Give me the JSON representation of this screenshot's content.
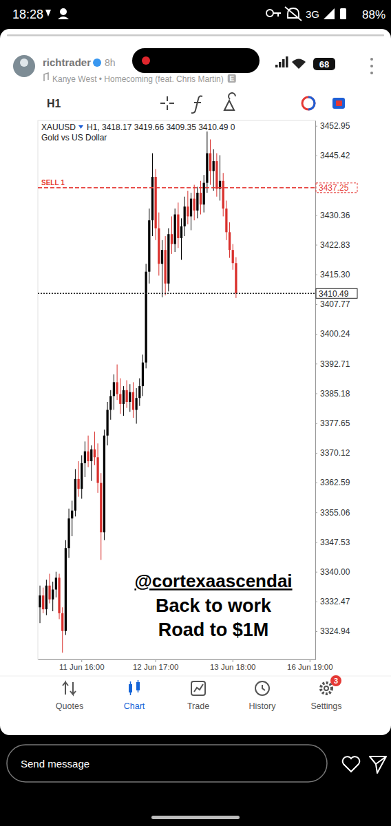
{
  "status_bar": {
    "time": "18:28",
    "network": "3G",
    "battery": "88%"
  },
  "story": {
    "username": "richtrader",
    "age": "8h",
    "song": "Kanye West • Homecoming (feat. Chris Martin)",
    "explicit": "E",
    "reply_placeholder": "Send message",
    "overlay": {
      "mention": "@cortexaascendai",
      "lines": [
        "Back to work",
        "Road to $1M"
      ]
    }
  },
  "inner_status": {
    "battery": "68"
  },
  "app": {
    "timeframe": "H1",
    "nav": [
      "Quotes",
      "Chart",
      "Trade",
      "History",
      "Settings"
    ],
    "active_nav": "Chart",
    "settings_badge": 3
  },
  "chart_data": {
    "type": "candlestick",
    "symbol": "XAUUSD",
    "header": "H1, 3418.17 3419.66 3409.35 3410.49 0",
    "subtitle": "Gold vs US Dollar",
    "categories": [
      null,
      null,
      null,
      null,
      null,
      null,
      null,
      null,
      null,
      null,
      null,
      null,
      null,
      "11 Jun 16:00",
      null,
      null,
      null,
      null,
      null,
      null,
      null,
      null,
      null,
      null,
      null,
      null,
      null,
      null,
      null,
      null,
      null,
      null,
      null,
      null,
      null,
      null,
      "12 Jun 17:00",
      null,
      null,
      null,
      null,
      null,
      null,
      null,
      null,
      null,
      null,
      null,
      null,
      null,
      null,
      null,
      null,
      null,
      null,
      null,
      null,
      null,
      null,
      null,
      "13 Jun 18:00",
      null,
      null,
      null,
      null,
      null,
      null,
      null,
      null,
      null,
      null,
      null,
      null,
      null,
      null,
      null,
      null,
      null,
      null,
      null,
      null,
      null,
      null,
      null,
      "16 Jun 19:00",
      null
    ],
    "open": [
      3331.0,
      3334.0,
      3330.5,
      3336.5,
      3333.0,
      3335.5,
      3338.5,
      3329.5,
      3325.0,
      3346.0,
      3353.5,
      3355.5,
      3363.5,
      3361.0,
      3367.5,
      3370.5,
      3368.0,
      3371.0,
      3369.0,
      3362.5,
      3350.0,
      3374.5,
      3381.0,
      3384.5,
      3388.0,
      3385.0,
      3382.5,
      3386.0,
      3383.0,
      3385.5,
      3381.0,
      3384.0,
      3387.0,
      3393.0,
      3416.0,
      3429.0,
      3440.0,
      3427.0,
      3418.0,
      3421.5,
      3413.0,
      3425.5,
      3423.0,
      3430.5,
      3424.5,
      3427.5,
      3432.5,
      3430.0,
      3434.5,
      3431.5,
      3436.0,
      3433.0,
      3438.5,
      3446.0,
      3441.5,
      3444.0,
      3437.0,
      3439.0,
      3432.0,
      3426.0,
      3421.5,
      3418.17,
      null,
      null,
      null,
      null,
      null,
      null,
      null,
      null,
      null,
      null,
      null,
      null,
      null,
      null,
      null,
      null,
      null,
      null,
      null,
      null,
      null,
      null,
      null,
      null
    ],
    "high": [
      3336.5,
      3336.0,
      3338.0,
      3339.5,
      3337.5,
      3340.0,
      3339.5,
      3331.0,
      3348.0,
      3356.0,
      3358.0,
      3366.0,
      3368.0,
      3369.5,
      3373.0,
      3374.5,
      3372.0,
      3375.5,
      3372.5,
      3365.0,
      3376.0,
      3383.0,
      3386.0,
      3390.0,
      3392.5,
      3389.0,
      3387.0,
      3388.5,
      3387.5,
      3388.0,
      3386.5,
      3389.0,
      3395.0,
      3418.0,
      3432.0,
      3446.0,
      3442.0,
      3431.0,
      3424.0,
      3425.0,
      3427.0,
      3430.0,
      3432.0,
      3433.5,
      3429.5,
      3435.0,
      3436.5,
      3436.0,
      3438.0,
      3437.5,
      3439.0,
      3440.5,
      3451.5,
      3449.5,
      3447.0,
      3446.0,
      3445.5,
      3441.0,
      3434.0,
      3428.5,
      3423.0,
      3419.66,
      null,
      null,
      null,
      null,
      null,
      null,
      null,
      null,
      null,
      null,
      null,
      null,
      null,
      null,
      null,
      null,
      null,
      null,
      null,
      null,
      null,
      null,
      null,
      null
    ],
    "low": [
      3327.0,
      3329.5,
      3329.0,
      3332.0,
      3330.0,
      3333.5,
      3328.0,
      3319.5,
      3324.0,
      3343.5,
      3349.0,
      3354.0,
      3359.0,
      3358.5,
      3364.0,
      3366.5,
      3363.0,
      3367.0,
      3360.0,
      3343.0,
      3348.0,
      3372.0,
      3378.5,
      3381.0,
      3383.5,
      3380.0,
      3379.5,
      3381.5,
      3380.5,
      3379.0,
      3377.5,
      3382.0,
      3384.5,
      3391.5,
      3413.0,
      3425.0,
      3424.0,
      3415.0,
      3409.5,
      3410.0,
      3411.0,
      3420.5,
      3421.0,
      3422.0,
      3419.0,
      3425.0,
      3428.0,
      3426.5,
      3429.0,
      3429.5,
      3430.5,
      3431.0,
      3436.0,
      3438.0,
      3436.5,
      3435.0,
      3434.0,
      3430.0,
      3424.0,
      3419.5,
      3416.5,
      3409.35,
      null,
      null,
      null,
      null,
      null,
      null,
      null,
      null,
      null,
      null,
      null,
      null,
      null,
      null,
      null,
      null,
      null,
      null,
      null,
      null,
      null,
      null,
      null,
      null
    ],
    "close": [
      3334.0,
      3330.5,
      3336.5,
      3333.0,
      3335.5,
      3338.5,
      3329.5,
      3325.0,
      3346.0,
      3353.5,
      3355.5,
      3363.5,
      3361.0,
      3367.5,
      3370.5,
      3368.0,
      3371.0,
      3369.0,
      3362.5,
      3350.0,
      3374.5,
      3381.0,
      3384.5,
      3388.0,
      3385.0,
      3382.5,
      3386.0,
      3383.0,
      3385.5,
      3381.0,
      3384.0,
      3387.0,
      3393.0,
      3416.0,
      3429.0,
      3440.0,
      3427.0,
      3418.0,
      3421.5,
      3413.0,
      3425.5,
      3423.0,
      3430.5,
      3424.5,
      3427.5,
      3432.5,
      3430.0,
      3434.5,
      3431.5,
      3436.0,
      3433.0,
      3438.5,
      3446.0,
      3441.5,
      3444.0,
      3437.0,
      3439.0,
      3432.0,
      3426.0,
      3421.5,
      3418.17,
      3410.49,
      null,
      null,
      null,
      null,
      null,
      null,
      null,
      null,
      null,
      null,
      null,
      null,
      null,
      null,
      null,
      null,
      null,
      null,
      null,
      null,
      null,
      null,
      null,
      null
    ],
    "ylim": [
      3317.8,
      3454.3
    ],
    "yticks": [
      3452.95,
      3445.42,
      3430.36,
      3422.83,
      {
        "value": 3415.3,
        "label": "3415.30"
      },
      3407.77,
      3400.24,
      3392.71,
      3385.18,
      3377.65,
      3370.12,
      3362.59,
      3355.06,
      3347.53,
      {
        "value": 3340,
        "label": "3340.00"
      },
      3332.47,
      3324.94
    ],
    "grid": false,
    "price_lines": [
      {
        "label": "SELL 1",
        "value": 3437.25,
        "color": "#e53935",
        "line_style": "dashed"
      },
      {
        "value": 3410.49,
        "color": "#222222",
        "line_style": "dotted"
      }
    ]
  }
}
